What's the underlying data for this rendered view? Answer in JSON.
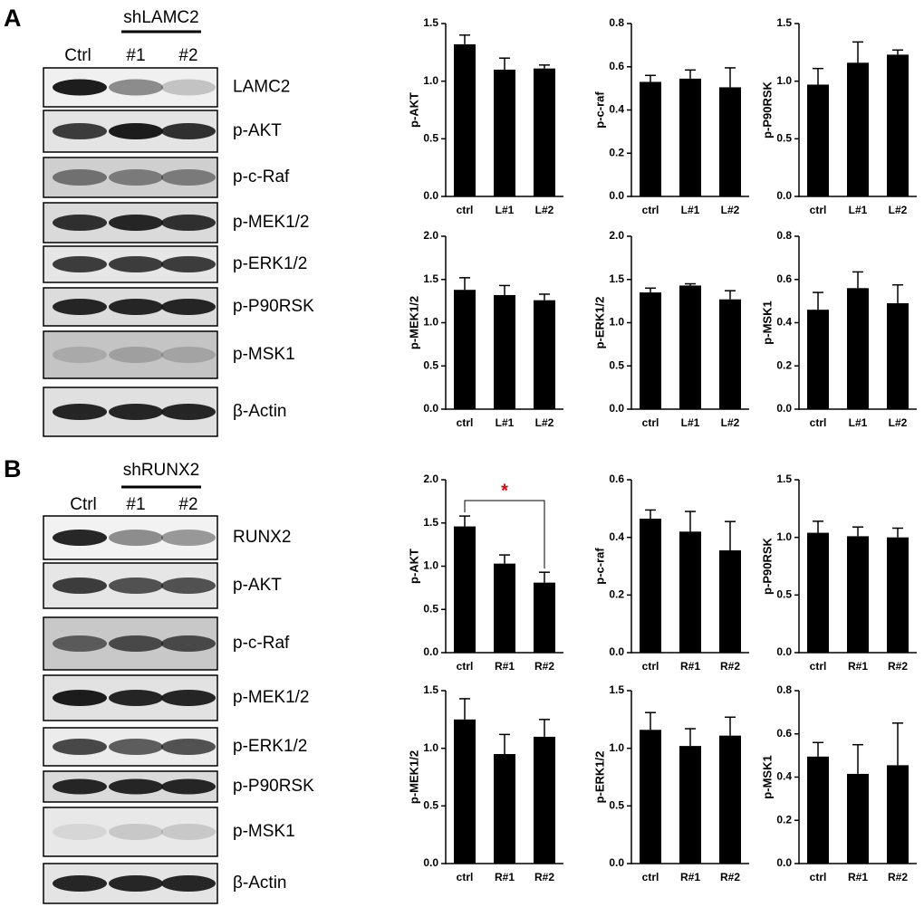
{
  "panels": [
    {
      "label": "A",
      "group": "shLAMC2",
      "lanes": [
        "Ctrl",
        "#1",
        "#2"
      ],
      "blots": [
        "LAMC2",
        "p-AKT",
        "p-c-Raf",
        "p-MEK1/2",
        "p-ERK1/2",
        "p-P90RSK",
        "p-MSK1",
        "β-Actin"
      ]
    },
    {
      "label": "B",
      "group": "shRUNX2",
      "lanes": [
        "Ctrl",
        "#1",
        "#2"
      ],
      "blots": [
        "RUNX2",
        "p-AKT",
        "p-c-Raf",
        "p-MEK1/2",
        "p-ERK1/2",
        "p-P90RSK",
        "p-MSK1",
        "β-Actin"
      ]
    }
  ],
  "chart_data": [
    {
      "type": "bar",
      "ylabel": "p-AKT",
      "categories": [
        "ctrl",
        "L#1",
        "L#2"
      ],
      "values": [
        1.32,
        1.1,
        1.11
      ],
      "errors": [
        0.08,
        0.1,
        0.03
      ],
      "color": "#000000",
      "ylim": [
        0,
        1.5
      ],
      "yticks": [
        {
          "value": 0,
          "label": "0.0"
        },
        {
          "value": 0.5,
          "label": "0.5"
        },
        {
          "value": 1,
          "label": "1.0"
        },
        {
          "value": 1.5,
          "label": "1.5"
        }
      ]
    },
    {
      "type": "bar",
      "ylabel": "p-c-raf",
      "categories": [
        "ctrl",
        "L#1",
        "L#2"
      ],
      "values": [
        0.53,
        0.545,
        0.505
      ],
      "errors": [
        0.03,
        0.04,
        0.09
      ],
      "color": "#000000",
      "ylim": [
        0,
        0.8
      ],
      "yticks": [
        {
          "value": 0,
          "label": "0.0"
        },
        0.2,
        0.4,
        0.6,
        0.8
      ]
    },
    {
      "type": "bar",
      "ylabel": "p-P90RSK",
      "categories": [
        "ctrl",
        "L#1",
        "L#2"
      ],
      "values": [
        0.97,
        1.16,
        1.23
      ],
      "errors": [
        0.14,
        0.18,
        0.04
      ],
      "color": "#000000",
      "ylim": [
        0,
        1.5
      ],
      "yticks": [
        {
          "value": 0,
          "label": "0.0"
        },
        0.5,
        {
          "value": 1,
          "label": "1.0"
        },
        1.5
      ]
    },
    {
      "type": "bar",
      "ylabel": "p-MEK1/2",
      "categories": [
        "ctrl",
        "L#1",
        "L#2"
      ],
      "values": [
        1.38,
        1.32,
        1.26
      ],
      "errors": [
        0.14,
        0.11,
        0.07
      ],
      "color": "#000000",
      "ylim": [
        0,
        2
      ],
      "yticks": [
        {
          "value": 0,
          "label": "0.0"
        },
        0.5,
        {
          "value": 1,
          "label": "1.0"
        },
        1.5,
        {
          "value": 2,
          "label": "2.0"
        }
      ]
    },
    {
      "type": "bar",
      "ylabel": "p-ERK1/2",
      "categories": [
        "ctrl",
        "L#1",
        "L#2"
      ],
      "values": [
        1.35,
        1.43,
        1.27
      ],
      "errors": [
        0.05,
        0.02,
        0.1
      ],
      "color": "#000000",
      "ylim": [
        0,
        2
      ],
      "yticks": [
        {
          "value": 0,
          "label": "0.0"
        },
        0.5,
        {
          "value": 1,
          "label": "1.0"
        },
        1.5,
        {
          "value": 2,
          "label": "2.0"
        }
      ]
    },
    {
      "type": "bar",
      "ylabel": "p-MSK1",
      "categories": [
        "ctrl",
        "L#1",
        "L#2"
      ],
      "values": [
        0.46,
        0.56,
        0.49
      ],
      "errors": [
        0.08,
        0.075,
        0.085
      ],
      "color": "#000000",
      "ylim": [
        0,
        0.8
      ],
      "yticks": [
        {
          "value": 0,
          "label": "0.0"
        },
        0.2,
        0.4,
        0.6,
        0.8
      ]
    },
    {
      "type": "bar",
      "ylabel": "p-AKT",
      "categories": [
        "ctrl",
        "R#1",
        "R#2"
      ],
      "values": [
        1.46,
        1.03,
        0.81
      ],
      "errors": [
        0.12,
        0.1,
        0.12
      ],
      "color": "#000000",
      "ylim": [
        0,
        2
      ],
      "yticks": [
        {
          "value": 0,
          "label": "0.0"
        },
        0.5,
        {
          "value": 1,
          "label": "1.0"
        },
        1.5,
        {
          "value": 2,
          "label": "2.0"
        }
      ],
      "annotation": "*"
    },
    {
      "type": "bar",
      "ylabel": "p-c-raf",
      "categories": [
        "ctrl",
        "R#1",
        "R#2"
      ],
      "values": [
        0.465,
        0.42,
        0.355
      ],
      "errors": [
        0.03,
        0.07,
        0.1
      ],
      "color": "#000000",
      "ylim": [
        0,
        0.6
      ],
      "yticks": [
        {
          "value": 0,
          "label": "0.0"
        },
        0.2,
        0.4,
        0.6
      ]
    },
    {
      "type": "bar",
      "ylabel": "p-P90RSK",
      "categories": [
        "ctrl",
        "R#1",
        "R#2"
      ],
      "values": [
        1.04,
        1.01,
        1.0
      ],
      "errors": [
        0.1,
        0.08,
        0.08
      ],
      "color": "#000000",
      "ylim": [
        0,
        1.5
      ],
      "yticks": [
        {
          "value": 0,
          "label": "0.0"
        },
        0.5,
        {
          "value": 1,
          "label": "1.0"
        },
        1.5
      ]
    },
    {
      "type": "bar",
      "ylabel": "p-MEK1/2",
      "categories": [
        "ctrl",
        "R#1",
        "R#2"
      ],
      "values": [
        1.25,
        0.95,
        1.1
      ],
      "errors": [
        0.18,
        0.17,
        0.15
      ],
      "color": "#000000",
      "ylim": [
        0,
        1.5
      ],
      "yticks": [
        {
          "value": 0,
          "label": "0.0"
        },
        0.5,
        {
          "value": 1,
          "label": "1.0"
        },
        1.5
      ]
    },
    {
      "type": "bar",
      "ylabel": "p-ERK1/2",
      "categories": [
        "ctrl",
        "R#1",
        "R#2"
      ],
      "values": [
        1.16,
        1.02,
        1.11
      ],
      "errors": [
        0.15,
        0.15,
        0.16
      ],
      "color": "#000000",
      "ylim": [
        0,
        1.5
      ],
      "yticks": [
        {
          "value": 0,
          "label": "0.0"
        },
        0.5,
        {
          "value": 1,
          "label": "1.0"
        },
        1.5
      ]
    },
    {
      "type": "bar",
      "ylabel": "p-MSK1",
      "categories": [
        "ctrl",
        "R#1",
        "R#2"
      ],
      "values": [
        0.495,
        0.415,
        0.455
      ],
      "errors": [
        0.065,
        0.135,
        0.195
      ],
      "color": "#000000",
      "ylim": [
        0,
        0.8
      ],
      "yticks": [
        {
          "value": 0,
          "label": "0.0"
        },
        0.2,
        0.4,
        0.6,
        0.8
      ]
    }
  ]
}
